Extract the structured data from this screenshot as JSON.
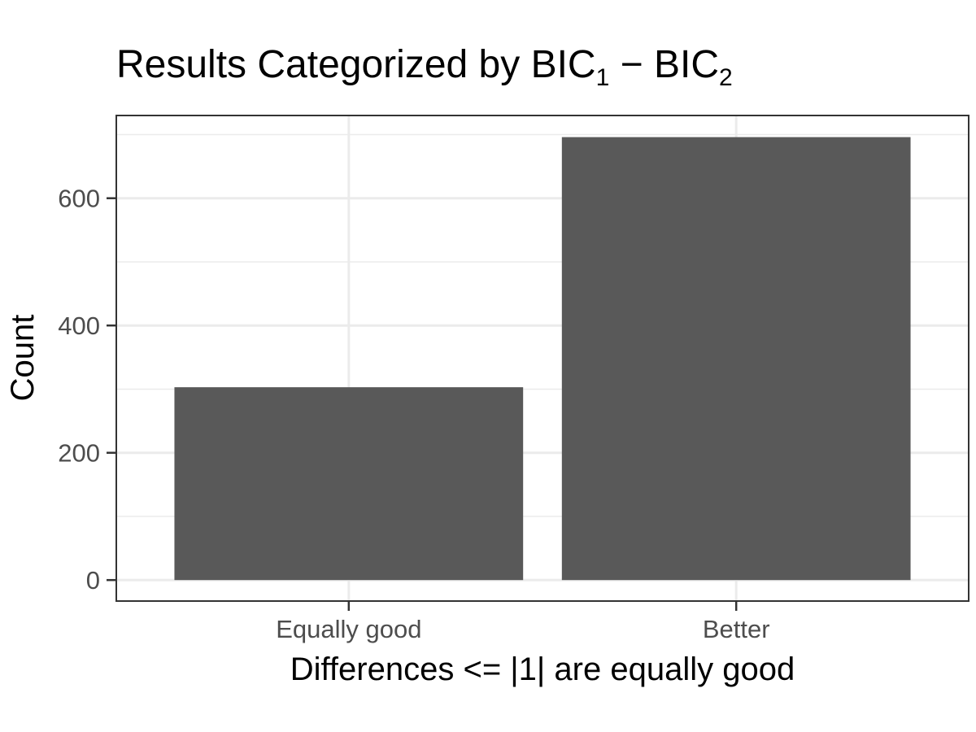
{
  "chart_data": {
    "type": "bar",
    "title": {
      "prefix": "Results Categorized by BIC",
      "sub1": "1",
      "minus": " − ",
      "mid": "BIC",
      "sub2": "2"
    },
    "xlabel": "Differences <= |1| are equally good",
    "ylabel": "Count",
    "categories": [
      "Equally good",
      "Better"
    ],
    "values": [
      303,
      696
    ],
    "ylim": [
      -33,
      730
    ],
    "yticks": [
      0,
      200,
      400,
      600
    ],
    "ytick_labels": [
      "0",
      "200",
      "400",
      "600"
    ],
    "grid": true,
    "bar_color": "#595959",
    "panel_border_color": "#333333",
    "grid_color": "#ebebeb"
  }
}
